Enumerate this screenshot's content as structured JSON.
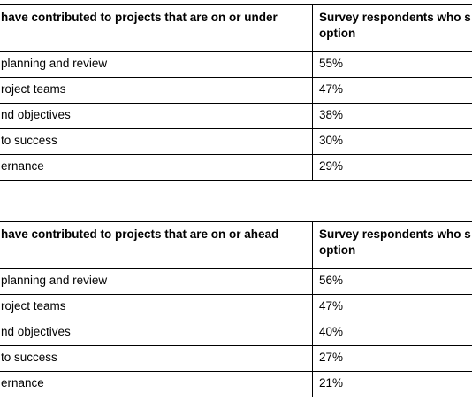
{
  "tables": [
    {
      "header": {
        "left": "have contributed to projects that are on or under",
        "right": [
          "Survey respondents who s",
          "option"
        ]
      },
      "rows": [
        [
          "planning and review",
          "55%"
        ],
        [
          "roject teams",
          "47%"
        ],
        [
          "nd objectives",
          "38%"
        ],
        [
          "to success",
          "30%"
        ],
        [
          "ernance",
          "29%"
        ]
      ]
    },
    {
      "header": {
        "left": "have contributed to projects that are on or ahead",
        "right": [
          "Survey respondents who s",
          "option"
        ]
      },
      "rows": [
        [
          "planning and review",
          "56%"
        ],
        [
          "roject teams",
          "47%"
        ],
        [
          "nd objectives",
          "40%"
        ],
        [
          "to success",
          "27%"
        ],
        [
          "ernance",
          "21%"
        ]
      ]
    }
  ]
}
